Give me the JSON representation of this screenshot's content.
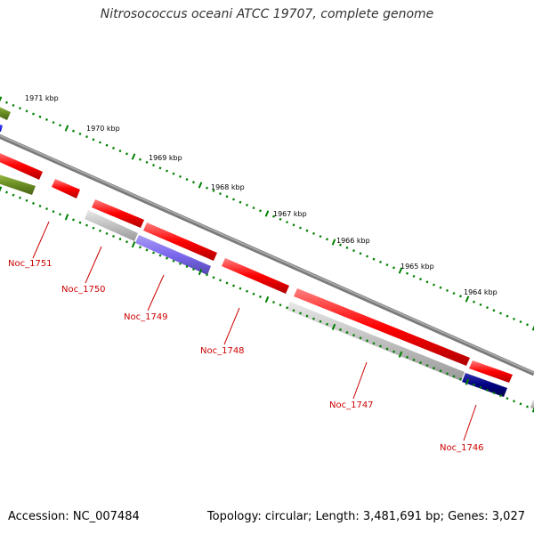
{
  "title": "Nitrosococcus oceani ATCC 19707, complete genome",
  "footer": {
    "accession": "Accession: NC_007484",
    "stats": "Topology: circular; Length: 3,481,691 bp; Genes: 3,027"
  },
  "ruler": {
    "labels": [
      "1971 kbp",
      "1970 kbp",
      "1969 kbp",
      "1968 kbp",
      "1967 kbp",
      "1966 kbp",
      "1965 kbp",
      "1964 kbp"
    ]
  },
  "genes": [
    {
      "name": "Noc_1751"
    },
    {
      "name": "Noc_1750"
    },
    {
      "name": "Noc_1749"
    },
    {
      "name": "Noc_1748"
    },
    {
      "name": "Noc_1747"
    },
    {
      "name": "Noc_1746"
    }
  ],
  "colors": {
    "forward_red": "#ff0000",
    "reverse_gray": "#bdbdbd",
    "olive": "#6b8e23",
    "blue": "#0000ff",
    "purple": "#7b68ee",
    "navy": "#000080",
    "tick_green": "#008000",
    "backbone": "#808080",
    "label_red": "#cc0000"
  }
}
